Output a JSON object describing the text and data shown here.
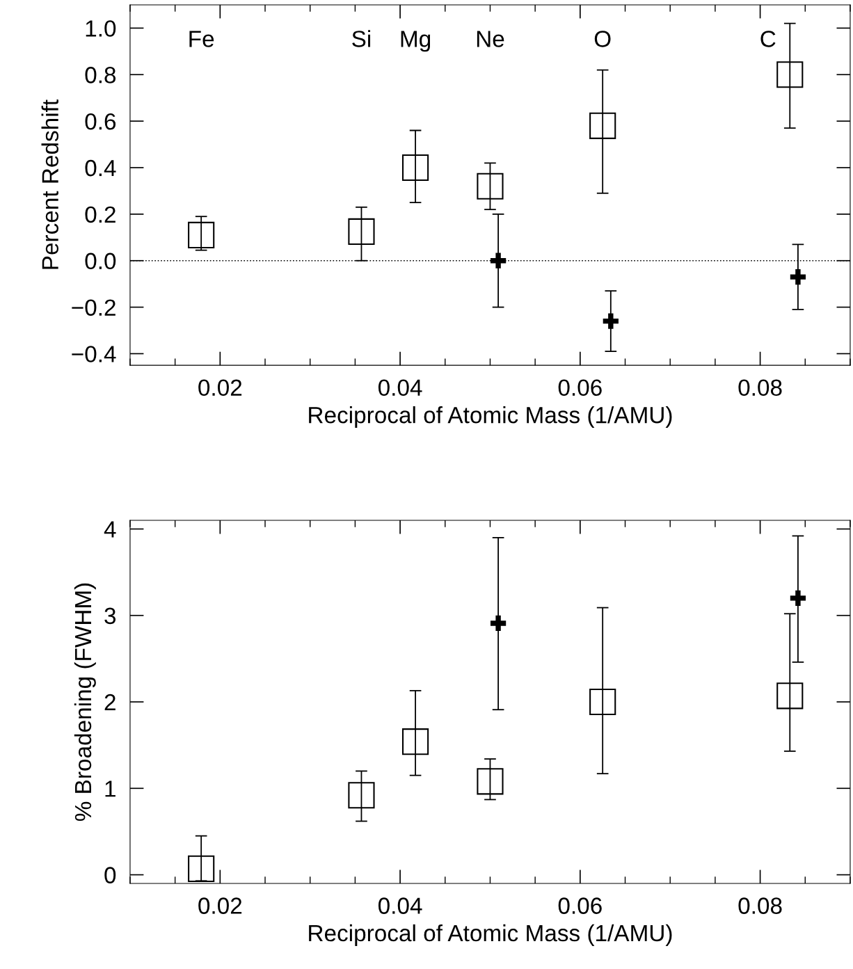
{
  "chart_data": [
    {
      "type": "scatter",
      "xlabel": "Reciprocal of Atomic Mass (1/AMU)",
      "ylabel": "Percent Redshift",
      "xlim": [
        0.01,
        0.09
      ],
      "xticks": [
        0.02,
        0.04,
        0.06,
        0.08
      ],
      "ylim": [
        -0.45,
        1.1
      ],
      "yticks": [
        {
          "value": -0.4,
          "label": "−0.4"
        },
        {
          "value": -0.2,
          "label": "−0.2"
        },
        {
          "value": 0.0,
          "label": "0.0"
        },
        0.2,
        0.4,
        0.6,
        0.8,
        {
          "value": 1.0,
          "label": "1.0"
        }
      ],
      "grid": false,
      "legend": false,
      "series": [
        {
          "color": "#000000",
          "marker": "square",
          "x": [
            0.0179,
            0.0357,
            0.0417,
            0.05,
            0.0625,
            0.0833
          ],
          "values": [
            0.11,
            0.125,
            0.4,
            0.32,
            0.58,
            0.8
          ],
          "errors": [
            [
              0.045,
              0.19
            ],
            [
              0.0,
              0.23
            ],
            [
              0.25,
              0.56
            ],
            [
              0.22,
              0.42
            ],
            [
              0.29,
              0.82
            ],
            [
              0.57,
              1.02
            ]
          ]
        },
        {
          "color": "#000000",
          "marker": "cross",
          "x": [
            0.0509,
            0.0634,
            0.0842
          ],
          "values": [
            0.0,
            -0.26,
            -0.07
          ],
          "errors": [
            [
              -0.2,
              0.2
            ],
            [
              -0.39,
              -0.13
            ],
            [
              -0.21,
              0.07
            ]
          ]
        }
      ],
      "ref_lines": [
        {
          "axis": "y",
          "value": 0.0,
          "line_style": "dotted",
          "color": "#000000"
        }
      ],
      "annotations": [
        "Fe",
        "Si",
        "Mg",
        "Ne",
        "O",
        "C"
      ]
    },
    {
      "type": "scatter",
      "xlabel": "Reciprocal of Atomic Mass (1/AMU)",
      "ylabel": "% Broadening (FWHM)",
      "xlim": [
        0.01,
        0.09
      ],
      "xticks": [
        0.02,
        0.04,
        0.06,
        0.08
      ],
      "ylim": [
        -0.1,
        4.1
      ],
      "yticks": [
        0,
        1,
        2,
        3,
        4
      ],
      "grid": false,
      "legend": false,
      "series": [
        {
          "color": "#000000",
          "marker": "square",
          "x": [
            0.0179,
            0.0357,
            0.0417,
            0.05,
            0.0625,
            0.0833
          ],
          "values": [
            0.07,
            0.92,
            1.54,
            1.08,
            2.0,
            2.07
          ],
          "errors": [
            [
              -0.07,
              0.45
            ],
            [
              0.62,
              1.2
            ],
            [
              1.15,
              2.13
            ],
            [
              0.87,
              1.34
            ],
            [
              1.17,
              3.09
            ],
            [
              1.43,
              3.02
            ]
          ]
        },
        {
          "color": "#000000",
          "marker": "cross",
          "x": [
            0.0509,
            0.0842
          ],
          "values": [
            2.91,
            3.2
          ],
          "errors": [
            [
              1.91,
              3.9
            ],
            [
              2.46,
              3.92
            ]
          ]
        }
      ]
    }
  ]
}
